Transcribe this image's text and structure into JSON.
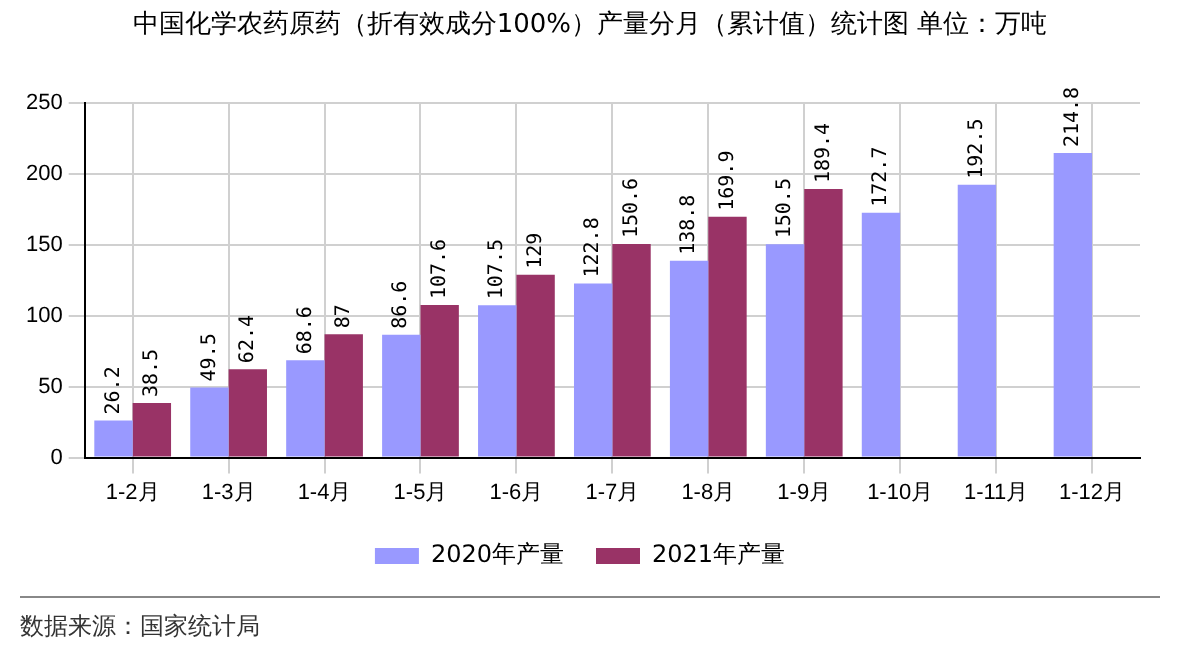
{
  "chart_data": {
    "type": "bar",
    "title": "中国化学农药原药（折有效成分100%）产量分月（累计值）统计图 单位：万吨",
    "categories": [
      "1-2月",
      "1-3月",
      "1-4月",
      "1-5月",
      "1-6月",
      "1-7月",
      "1-8月",
      "1-9月",
      "1-10月",
      "1-11月",
      "1-12月"
    ],
    "series": [
      {
        "name": "2020年产量",
        "color": "#9999ff",
        "values": [
          26.2,
          49.5,
          68.6,
          86.6,
          107.5,
          122.8,
          138.8,
          150.5,
          172.7,
          192.5,
          214.8
        ]
      },
      {
        "name": "2021年产量",
        "color": "#993366",
        "values": [
          38.5,
          62.4,
          87,
          107.6,
          129,
          150.6,
          169.9,
          189.4,
          null,
          null,
          null
        ]
      }
    ],
    "ylim": [
      0,
      250
    ],
    "yticks": [
      0,
      50,
      100,
      150,
      200,
      250
    ],
    "grid": true,
    "legend": "bottom",
    "data_labels": true,
    "annotations": [
      "数据来源：国家统计局"
    ]
  }
}
